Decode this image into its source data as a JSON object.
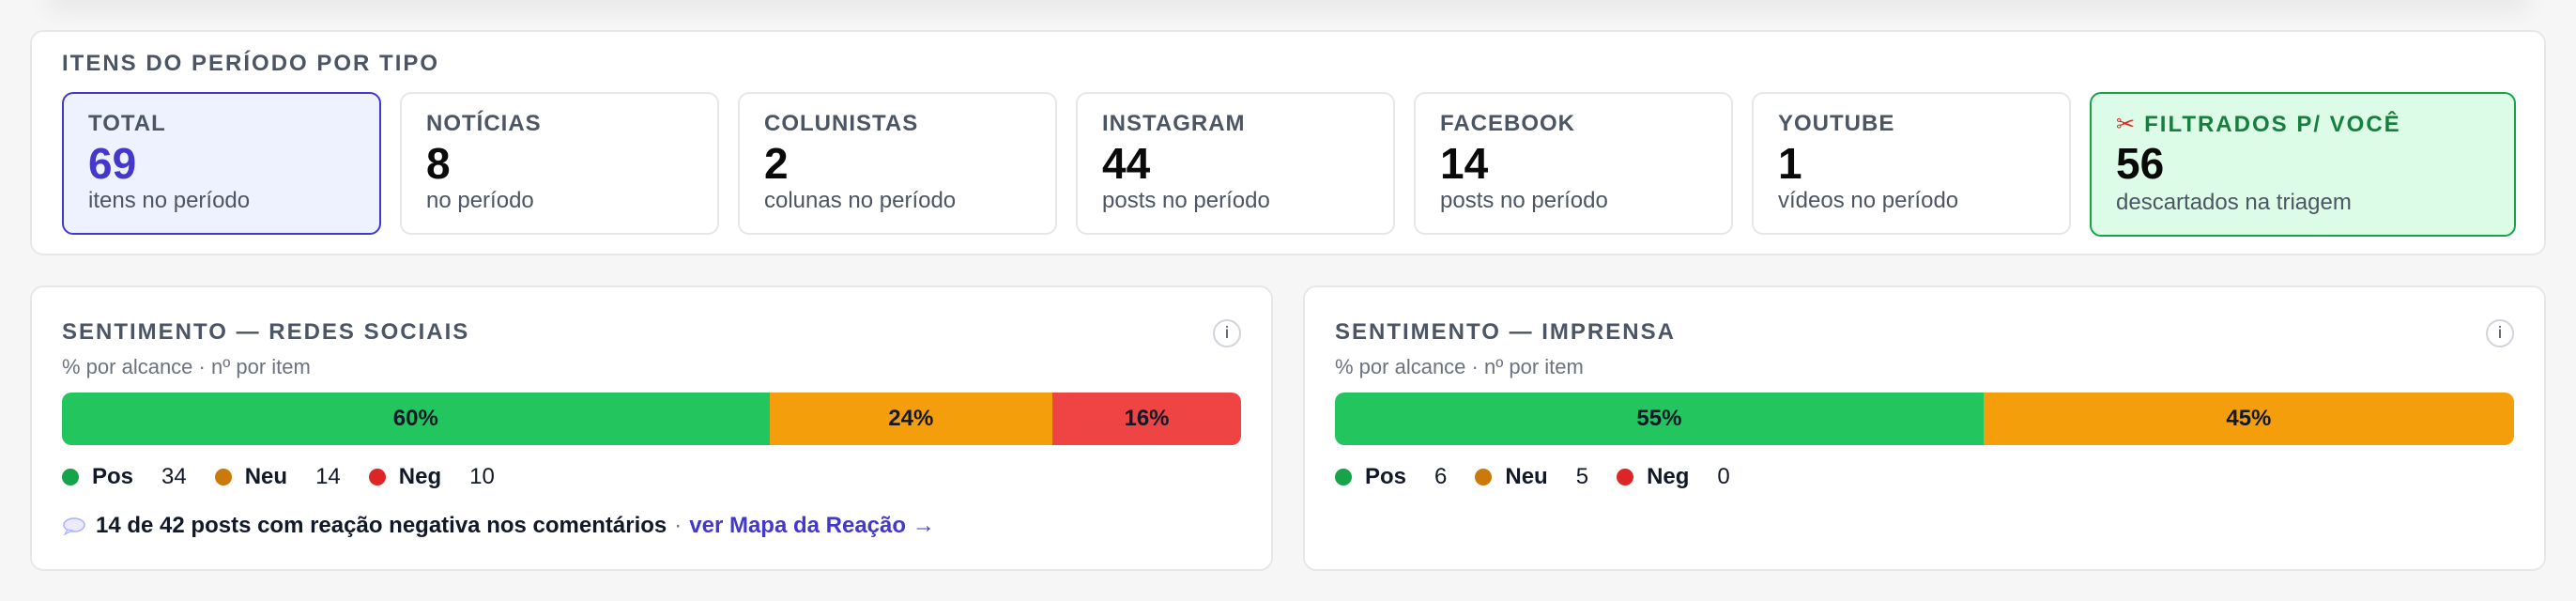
{
  "types_section": {
    "title": "ITENS DO PERÍODO POR TIPO",
    "cards": [
      {
        "label": "TOTAL",
        "value": "69",
        "sub": "itens no período"
      },
      {
        "label": "NOTÍCIAS",
        "value": "8",
        "sub": "no período"
      },
      {
        "label": "COLUNISTAS",
        "value": "2",
        "sub": "colunas no período"
      },
      {
        "label": "INSTAGRAM",
        "value": "44",
        "sub": "posts no período"
      },
      {
        "label": "FACEBOOK",
        "value": "14",
        "sub": "posts no período"
      },
      {
        "label": "YOUTUBE",
        "value": "1",
        "sub": "vídeos no período"
      },
      {
        "label": "FILTRADOS P/ VOCÊ",
        "value": "56",
        "sub": "descartados na triagem",
        "icon": "scissors-icon"
      }
    ]
  },
  "sentiment_social": {
    "title": "SENTIMENTO — REDES SOCIAIS",
    "subtitle": "% por alcance · nº por item",
    "info": "i",
    "bar": [
      {
        "key": "pos",
        "percent": 60,
        "label": "60%"
      },
      {
        "key": "neu",
        "percent": 24,
        "label": "24%"
      },
      {
        "key": "neg",
        "percent": 16,
        "label": "16%"
      }
    ],
    "legend": [
      {
        "label": "Pos",
        "count": "34"
      },
      {
        "label": "Neu",
        "count": "14"
      },
      {
        "label": "Neg",
        "count": "10"
      }
    ],
    "footnote": {
      "icon": "speech-bubble-icon",
      "text": "14 de 42 posts com reação negativa nos comentários",
      "separator": "·",
      "link": "ver Mapa da Reação →"
    }
  },
  "sentiment_press": {
    "title": "SENTIMENTO — IMPRENSA",
    "subtitle": "% por alcance · nº por item",
    "info": "i",
    "bar": [
      {
        "key": "pos",
        "percent": 55,
        "label": "55%"
      },
      {
        "key": "neu",
        "percent": 45,
        "label": "45%"
      }
    ],
    "legend": [
      {
        "label": "Pos",
        "count": "6"
      },
      {
        "label": "Neu",
        "count": "5"
      },
      {
        "label": "Neg",
        "count": "0"
      }
    ]
  },
  "colors": {
    "accent": "#4338ca",
    "positive": "#22c55e",
    "neutral": "#f59e0b",
    "negative": "#ef4444",
    "filtered_bg": "#dcfce7"
  }
}
